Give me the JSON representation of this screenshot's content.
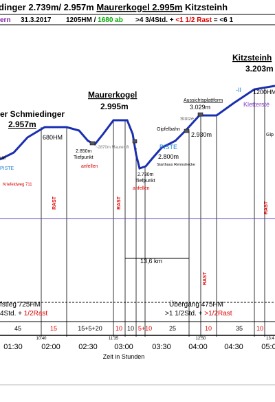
{
  "header": {
    "title": [
      "dinger 2.739m/ 2.957m",
      "Maurerkogel 2.995m",
      "Kitzsteinh"
    ],
    "subtitle": [
      "ern",
      "31.3.2017",
      "1205HM /",
      "1680 ab",
      ">4 3/4Std. +",
      "<1 1/2 Rast",
      "=",
      "<6 1"
    ]
  },
  "peaks": [
    {
      "name": "er Schmiedinger",
      "height": "2.957m"
    },
    {
      "name": "Maurerkogel",
      "height": "2.995m"
    },
    {
      "name": "Kitzsteinh",
      "height": "3.203m"
    }
  ],
  "labels": {
    "hm1": "680HM",
    "hm2": "1200HM",
    "grade": "-II",
    "klettersteig": "Klettersté",
    "platform": "Aussichtsplattform",
    "platform_height": "3.029m",
    "stuetze": "Stütze",
    "gipfelbahn": "Gipfelbahn",
    "gipfelbahn_height": "2.930m",
    "piste1": "PISTE",
    "piste2": "PISTE",
    "startplace_height": "2.800m",
    "startplace": "Starthaus Rennstrecke",
    "low1_height": "2.850m",
    "low1": "Tiefpunkt",
    "skin1": "anfellen",
    "lift": "~2870m Maurerlift",
    "low2_height": "2.730m",
    "low2": "Tiefpunkt",
    "skin2": "anfellen",
    "trail": "Kriefeldweg 711",
    "left": "räf",
    "right": "Gip"
  },
  "rast": [
    "RAST",
    "RAST",
    "RAST",
    "RAST"
  ],
  "distance": "13,6 km",
  "legs": [
    {
      "name": "fstieg 725HM",
      "time": "4Std. +",
      "rest": "1/2Rast"
    },
    {
      "name": "Übergang 475HM",
      "time": ">1 1/2Std. +",
      "rest": ">1/2Rast"
    }
  ],
  "durations": [
    "45",
    "15",
    "15+5+20",
    "10",
    "10",
    "5+10",
    "25",
    "10",
    "35",
    "10"
  ],
  "clock": [
    "10:40",
    "11:35",
    "12:50",
    "13:4"
  ],
  "time_axis": {
    "ticks": [
      "01:30",
      "02:00",
      "02:30",
      "03:00",
      "03:30",
      "04:00",
      "04:30",
      "05:0"
    ],
    "label": "Zeit in Stunden"
  }
}
